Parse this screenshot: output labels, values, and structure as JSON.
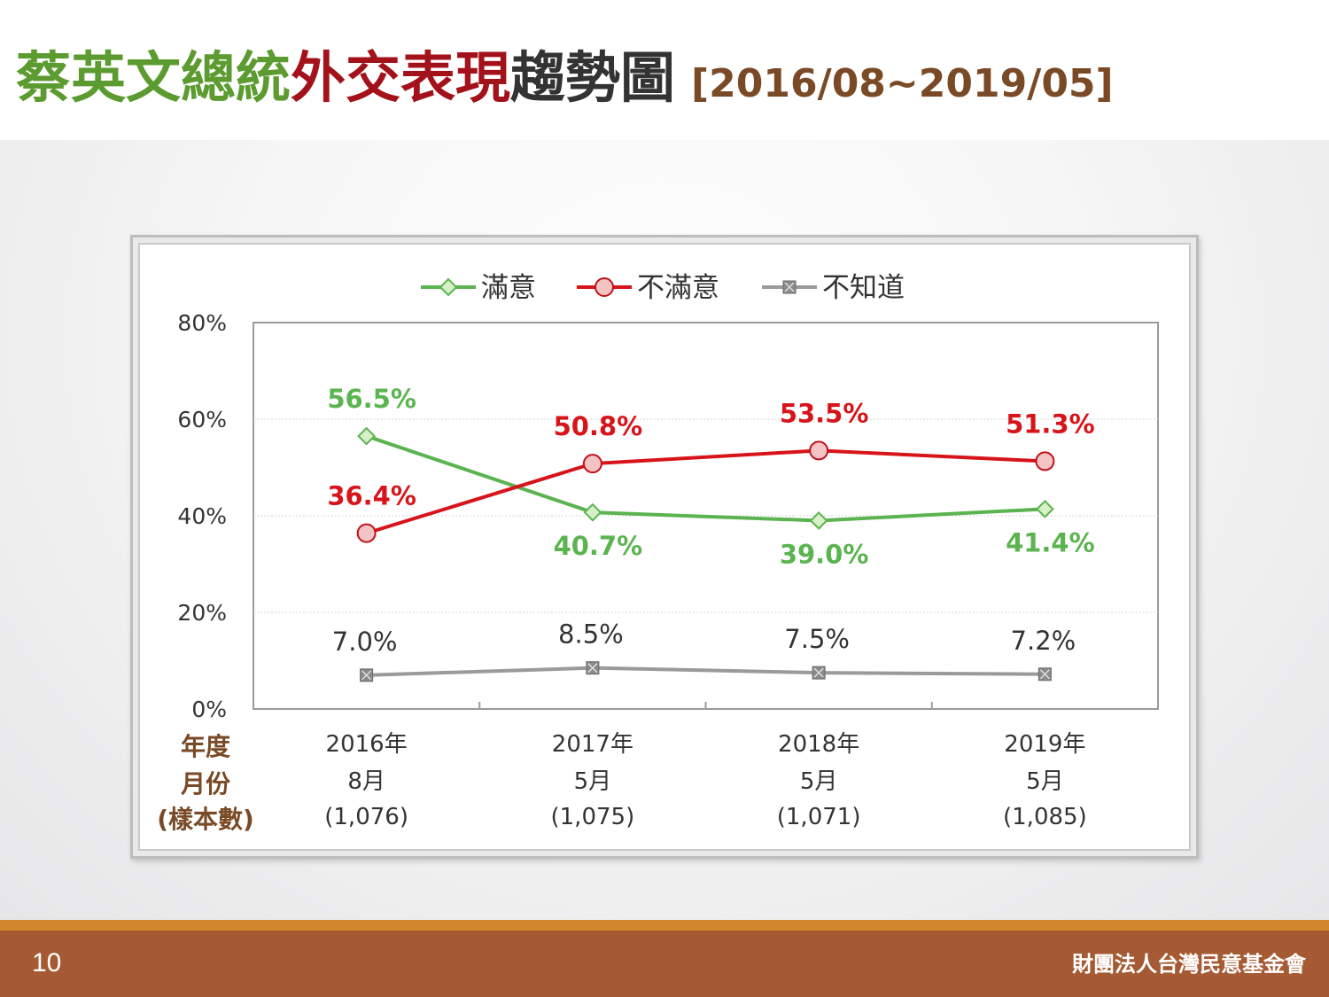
{
  "slide": {
    "title_part1": "蔡英文總統",
    "title_part2": "外交表現",
    "title_part3": "趨勢圖",
    "title_range": "[2016/08~2019/05]",
    "page_number": "10",
    "organization": "財團法人台灣民意基金會"
  },
  "colors": {
    "satisfied": "#5bb450",
    "dissatisfied": "#d7141a",
    "unknown": "#9a9a9a",
    "row_label": "#7a4a26",
    "footer": "#a55a33",
    "footer_line": "#d3872b"
  },
  "chart_data": {
    "type": "line",
    "title": "",
    "xlabel": "",
    "ylabel": "",
    "ylim": [
      0,
      80
    ],
    "yticks": [
      0,
      20,
      40,
      60,
      80
    ],
    "ytick_labels": [
      "0%",
      "20%",
      "40%",
      "60%",
      "80%"
    ],
    "grid": true,
    "legend_position": "top-center",
    "row_labels": [
      "年度",
      "月份",
      "(樣本數)"
    ],
    "categories": [
      {
        "year": "2016年",
        "month": "8月",
        "sample": "(1,076)"
      },
      {
        "year": "2017年",
        "month": "5月",
        "sample": "(1,075)"
      },
      {
        "year": "2018年",
        "month": "5月",
        "sample": "(1,071)"
      },
      {
        "year": "2019年",
        "month": "5月",
        "sample": "(1,085)"
      }
    ],
    "series": [
      {
        "name": "滿意",
        "color": "#5bb450",
        "marker": "diamond",
        "values": [
          56.5,
          40.7,
          39.0,
          41.4
        ],
        "labels": [
          "56.5%",
          "40.7%",
          "39.0%",
          "41.4%"
        ],
        "label_side": [
          "above",
          "below",
          "below",
          "below"
        ]
      },
      {
        "name": "不滿意",
        "color": "#d7141a",
        "marker": "circle",
        "values": [
          36.4,
          50.8,
          53.5,
          51.3
        ],
        "labels": [
          "36.4%",
          "50.8%",
          "53.5%",
          "51.3%"
        ],
        "label_side": [
          "above",
          "above",
          "above",
          "above"
        ]
      },
      {
        "name": "不知道",
        "color": "#9a9a9a",
        "marker": "square-x",
        "values": [
          7.0,
          8.5,
          7.5,
          7.2
        ],
        "labels": [
          "7.0%",
          "8.5%",
          "7.5%",
          "7.2%"
        ],
        "label_side": [
          "above",
          "above",
          "above",
          "above"
        ]
      }
    ]
  }
}
